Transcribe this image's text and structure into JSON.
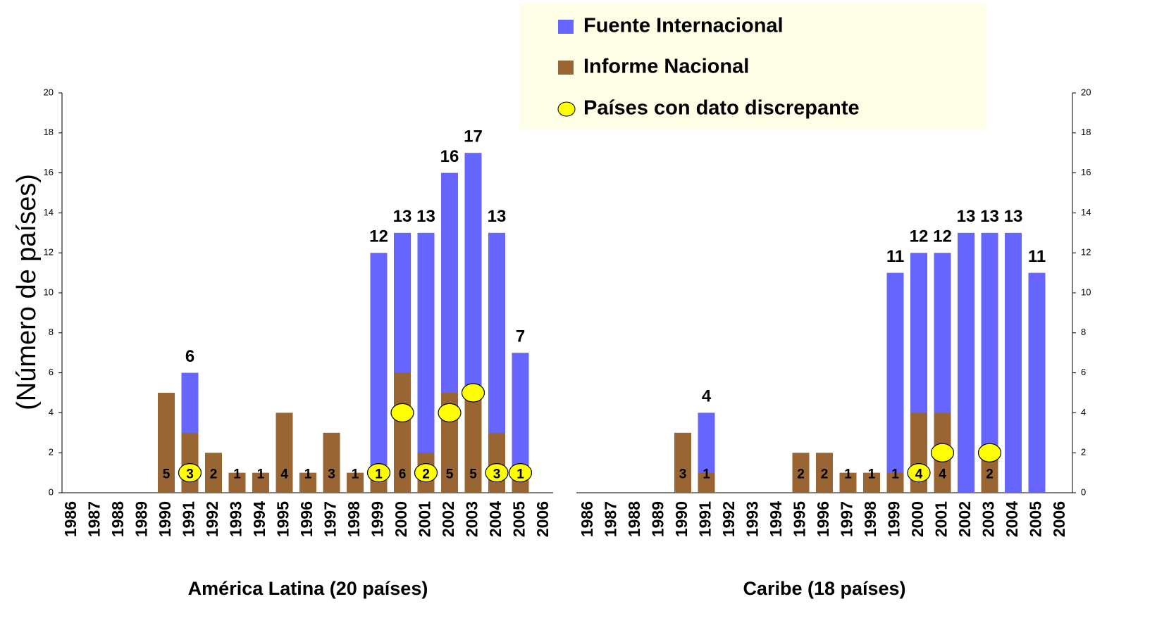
{
  "chart_data": {
    "type": "bar",
    "y_label": "(Número de países)",
    "ylim": [
      0,
      20
    ],
    "yticks": [
      0,
      2,
      4,
      6,
      8,
      10,
      12,
      14,
      16,
      18,
      20
    ],
    "y2lim": [
      0,
      20
    ],
    "y2ticks": [
      0,
      2,
      4,
      6,
      8,
      10,
      12,
      14,
      16,
      18,
      20
    ],
    "categories": [
      "1986",
      "1987",
      "1988",
      "1989",
      "1990",
      "1991",
      "1992",
      "1993",
      "1994",
      "1995",
      "1996",
      "1997",
      "1998",
      "1999",
      "2000",
      "2001",
      "2002",
      "2003",
      "2004",
      "2005",
      "2006"
    ],
    "legend": "top-right",
    "groups": [
      {
        "name": "América Latina (20 países)",
        "series": [
          {
            "name": "Fuente Internacional",
            "type": "bar",
            "color": "#6666ff",
            "values": [
              null,
              null,
              null,
              null,
              null,
              6,
              null,
              null,
              null,
              null,
              null,
              null,
              null,
              12,
              13,
              13,
              16,
              17,
              13,
              7,
              null
            ]
          },
          {
            "name": "Informe Nacional",
            "type": "bar",
            "color": "#996633",
            "values": [
              null,
              null,
              null,
              null,
              5,
              3,
              2,
              1,
              1,
              4,
              1,
              3,
              1,
              1,
              6,
              2,
              5,
              5,
              3,
              1,
              null
            ]
          },
          {
            "name": "Países con dato discrepante",
            "type": "scatter",
            "color": "#ffff00",
            "values": [
              null,
              null,
              null,
              null,
              null,
              1,
              null,
              null,
              null,
              null,
              null,
              null,
              null,
              1,
              4,
              1,
              4,
              5,
              1,
              1,
              null
            ]
          }
        ]
      },
      {
        "name": "Caribe (18 países)",
        "series": [
          {
            "name": "Fuente Internacional",
            "type": "bar",
            "color": "#6666ff",
            "values": [
              null,
              null,
              null,
              null,
              null,
              4,
              null,
              null,
              null,
              null,
              null,
              null,
              null,
              11,
              12,
              12,
              13,
              13,
              13,
              11,
              null
            ]
          },
          {
            "name": "Informe Nacional",
            "type": "bar",
            "color": "#996633",
            "values": [
              null,
              null,
              null,
              null,
              3,
              1,
              null,
              null,
              null,
              2,
              2,
              1,
              1,
              1,
              4,
              4,
              null,
              2,
              null,
              null,
              null
            ]
          },
          {
            "name": "Países con dato discrepante",
            "type": "scatter",
            "color": "#ffff00",
            "values": [
              null,
              null,
              null,
              null,
              null,
              null,
              null,
              null,
              null,
              null,
              null,
              null,
              null,
              null,
              1,
              2,
              null,
              2,
              null,
              null,
              null
            ]
          }
        ]
      }
    ]
  }
}
